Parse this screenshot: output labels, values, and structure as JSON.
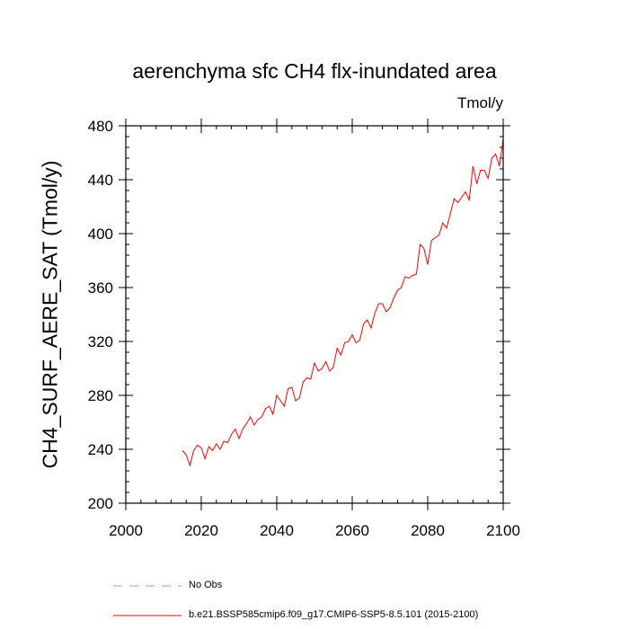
{
  "chart_data": {
    "type": "line",
    "title": "aerenchyma sfc CH4 flx-inundated area",
    "units": "Tmol/y",
    "ylabel": "CH4_SURF_AERE_SAT  (Tmol/y)",
    "xlabel": "",
    "xlim": [
      2000,
      2100
    ],
    "ylim": [
      200,
      480
    ],
    "x_ticks": [
      "2000",
      "2020",
      "2040",
      "2060",
      "2080",
      "2100"
    ],
    "y_ticks": [
      "200",
      "240",
      "280",
      "320",
      "360",
      "400",
      "440",
      "480"
    ],
    "x": [
      2015,
      2016,
      2017,
      2018,
      2019,
      2020,
      2021,
      2022,
      2023,
      2024,
      2025,
      2026,
      2027,
      2028,
      2029,
      2030,
      2031,
      2032,
      2033,
      2034,
      2035,
      2036,
      2037,
      2038,
      2039,
      2040,
      2041,
      2042,
      2043,
      2044,
      2045,
      2046,
      2047,
      2048,
      2049,
      2050,
      2051,
      2052,
      2053,
      2054,
      2055,
      2056,
      2057,
      2058,
      2059,
      2060,
      2061,
      2062,
      2063,
      2064,
      2065,
      2066,
      2067,
      2068,
      2069,
      2070,
      2071,
      2072,
      2073,
      2074,
      2075,
      2076,
      2077,
      2078,
      2079,
      2080,
      2081,
      2082,
      2083,
      2084,
      2085,
      2086,
      2087,
      2088,
      2089,
      2090,
      2091,
      2092,
      2093,
      2094,
      2095,
      2096,
      2097,
      2098,
      2099,
      2100
    ],
    "series": [
      {
        "name": "b.e21.BSSP585cmip6.f09_g17.CMIP6-SSP5-8.5.101 (2015-2100)",
        "color": "#ff0000",
        "values": [
          239,
          236,
          228,
          239,
          243,
          241,
          233,
          242,
          239,
          244,
          240,
          246,
          245,
          251,
          255,
          248,
          255,
          259,
          264,
          258,
          262,
          264,
          270,
          272,
          266,
          280,
          276,
          272,
          285,
          286,
          276,
          278,
          290,
          293,
          292,
          304,
          298,
          300,
          305,
          298,
          301,
          315,
          310,
          319,
          320,
          325,
          319,
          321,
          333,
          336,
          330,
          341,
          348,
          348,
          342,
          345,
          352,
          358,
          360,
          368,
          367,
          369,
          370,
          392,
          389,
          377,
          395,
          397,
          399,
          408,
          404,
          415,
          426,
          423,
          427,
          431,
          425,
          450,
          437,
          447,
          447,
          441,
          456,
          459,
          450,
          470
        ]
      }
    ],
    "legend": [
      {
        "label": "No Obs",
        "color": "#9999ff",
        "style": "dashed"
      },
      {
        "label": "b.e21.BSSP585cmip6.f09_g17.CMIP6-SSP5-8.5.101 (2015-2100)",
        "color": "#ff0000",
        "style": "solid"
      }
    ],
    "grid": false
  }
}
